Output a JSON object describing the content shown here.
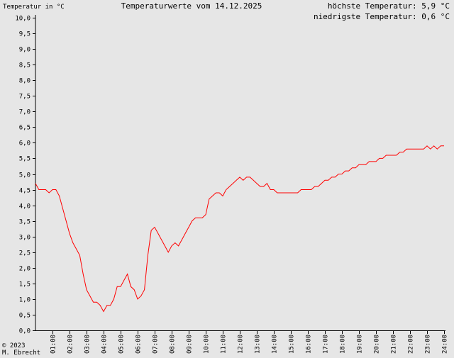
{
  "header": {
    "ylabel": "Temperatur in °C",
    "title": "Temperaturwerte vom 14.12.2025",
    "max_label": "höchste Temperatur: 5,9 °C",
    "min_label": "niedrigste Temperatur: 0,6 °C"
  },
  "footer": {
    "copyright": "© 2023",
    "author": "M. Ebrecht"
  },
  "chart_data": {
    "type": "line",
    "title": "Temperaturwerte vom 14.12.2025",
    "ylabel": "Temperatur in °C",
    "xlabel": "",
    "xlim": [
      0,
      24
    ],
    "ylim": [
      0,
      10
    ],
    "yticks": [
      "0,0",
      "0,5",
      "1,0",
      "1,5",
      "2,0",
      "2,5",
      "3,0",
      "3,5",
      "4,0",
      "4,5",
      "5,0",
      "5,5",
      "6,0",
      "6,5",
      "7,0",
      "7,5",
      "8,0",
      "8,5",
      "9,0",
      "9,5",
      "10,0"
    ],
    "xticks": [
      "01:00",
      "02:00",
      "03:00",
      "04:00",
      "05:00",
      "06:00",
      "07:00",
      "08:00",
      "09:00",
      "10:00",
      "11:00",
      "12:00",
      "13:00",
      "14:00",
      "15:00",
      "16:00",
      "17:00",
      "18:00",
      "19:00",
      "20:00",
      "21:00",
      "22:00",
      "23:00",
      "24:00"
    ],
    "line_color": "#ff0000",
    "series": [
      {
        "x": [
          0.0,
          0.2,
          0.4,
          0.6,
          0.8,
          1.0,
          1.2,
          1.4,
          1.6,
          1.8,
          2.0,
          2.2,
          2.4,
          2.6,
          2.8,
          3.0,
          3.2,
          3.4,
          3.6,
          3.8,
          4.0,
          4.2,
          4.4,
          4.6,
          4.8,
          5.0,
          5.2,
          5.4,
          5.6,
          5.8,
          6.0,
          6.2,
          6.4,
          6.6,
          6.8,
          7.0,
          7.2,
          7.4,
          7.6,
          7.8,
          8.0,
          8.2,
          8.4,
          8.6,
          8.8,
          9.0,
          9.2,
          9.4,
          9.6,
          9.8,
          10.0,
          10.2,
          10.4,
          10.6,
          10.8,
          11.0,
          11.2,
          11.4,
          11.6,
          11.8,
          12.0,
          12.2,
          12.4,
          12.6,
          12.8,
          13.0,
          13.2,
          13.4,
          13.6,
          13.8,
          14.0,
          14.2,
          14.4,
          14.6,
          14.8,
          15.0,
          15.2,
          15.4,
          15.6,
          15.8,
          16.0,
          16.2,
          16.4,
          16.6,
          16.8,
          17.0,
          17.2,
          17.4,
          17.6,
          17.8,
          18.0,
          18.2,
          18.4,
          18.6,
          18.8,
          19.0,
          19.2,
          19.4,
          19.6,
          19.8,
          20.0,
          20.2,
          20.4,
          20.6,
          20.8,
          21.0,
          21.2,
          21.4,
          21.6,
          21.8,
          22.0,
          22.2,
          22.4,
          22.6,
          22.8,
          23.0,
          23.2,
          23.4,
          23.6,
          23.8,
          24.0
        ],
        "values": [
          4.7,
          4.5,
          4.5,
          4.5,
          4.4,
          4.5,
          4.5,
          4.3,
          3.9,
          3.5,
          3.1,
          2.8,
          2.6,
          2.4,
          1.8,
          1.3,
          1.1,
          0.9,
          0.9,
          0.8,
          0.6,
          0.8,
          0.8,
          1.0,
          1.4,
          1.4,
          1.6,
          1.8,
          1.4,
          1.3,
          1.0,
          1.1,
          1.3,
          2.4,
          3.2,
          3.3,
          3.1,
          2.9,
          2.7,
          2.5,
          2.7,
          2.8,
          2.7,
          2.9,
          3.1,
          3.3,
          3.5,
          3.6,
          3.6,
          3.6,
          3.7,
          4.2,
          4.3,
          4.4,
          4.4,
          4.3,
          4.5,
          4.6,
          4.7,
          4.8,
          4.9,
          4.8,
          4.9,
          4.9,
          4.8,
          4.7,
          4.6,
          4.6,
          4.7,
          4.5,
          4.5,
          4.4,
          4.4,
          4.4,
          4.4,
          4.4,
          4.4,
          4.4,
          4.5,
          4.5,
          4.5,
          4.5,
          4.6,
          4.6,
          4.7,
          4.8,
          4.8,
          4.9,
          4.9,
          5.0,
          5.0,
          5.1,
          5.1,
          5.2,
          5.2,
          5.3,
          5.3,
          5.3,
          5.4,
          5.4,
          5.4,
          5.5,
          5.5,
          5.6,
          5.6,
          5.6,
          5.6,
          5.7,
          5.7,
          5.8,
          5.8,
          5.8,
          5.8,
          5.8,
          5.8,
          5.9,
          5.8,
          5.9,
          5.8,
          5.9,
          5.9
        ]
      }
    ]
  }
}
